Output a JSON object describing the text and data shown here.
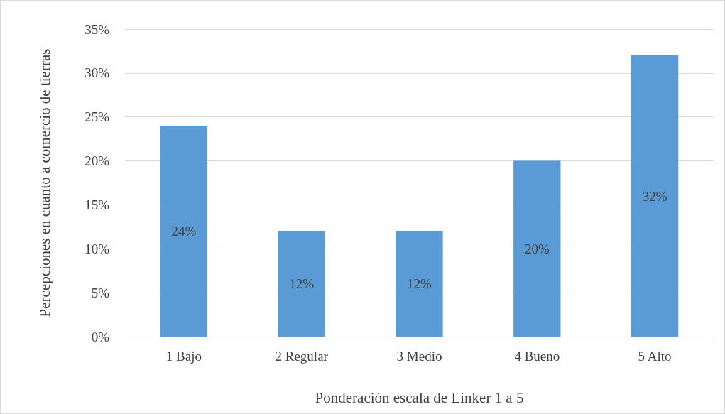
{
  "chart_data": {
    "type": "bar",
    "xlabel": "Ponderación escala de Linker 1 a 5",
    "ylabel": "Percepciones en cuanto a comercio de tierras",
    "categories": [
      "1 Bajo",
      "2 Regular",
      "3 Medio",
      "4 Bueno",
      "5 Alto"
    ],
    "values": [
      24,
      12,
      12,
      20,
      32
    ],
    "color": "#5b9bd5",
    "value_labels": [
      "24%",
      "12%",
      "12%",
      "20%",
      "32%"
    ],
    "ylim": [
      0,
      35
    ],
    "yticks": [
      {
        "value": 0,
        "label": "0%"
      },
      {
        "value": 5,
        "label": "5%"
      },
      {
        "value": 10,
        "label": "10%"
      },
      {
        "value": 15,
        "label": "15%"
      },
      {
        "value": 20,
        "label": "20%"
      },
      {
        "value": 25,
        "label": "25%"
      },
      {
        "value": 30,
        "label": "30%"
      },
      {
        "value": 35,
        "label": "35%"
      }
    ],
    "grid": "y"
  }
}
